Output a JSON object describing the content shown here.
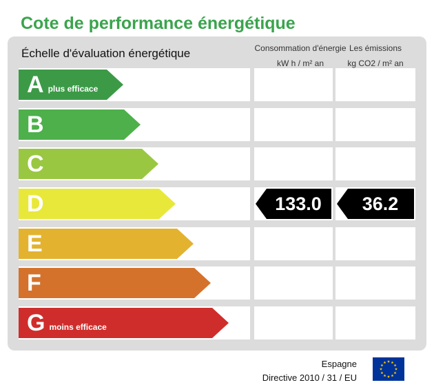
{
  "title": "Cote de performance énergétique",
  "scale_label": "Échelle d'évaluation énergétique",
  "columns": {
    "consumption": {
      "line1": "Consommation d'énergie",
      "line2": "kW h / m² an"
    },
    "emissions": {
      "line1": "Les émissions",
      "line2": "kg CO2 / m² an"
    }
  },
  "ratings": [
    {
      "letter": "A",
      "sub": "plus efficace",
      "color": "#3c9a47"
    },
    {
      "letter": "B",
      "sub": "",
      "color": "#4db04a"
    },
    {
      "letter": "C",
      "sub": "",
      "color": "#9ac741"
    },
    {
      "letter": "D",
      "sub": "",
      "color": "#e8e83a"
    },
    {
      "letter": "E",
      "sub": "",
      "color": "#e3b330"
    },
    {
      "letter": "F",
      "sub": "",
      "color": "#d4722c"
    },
    {
      "letter": "G",
      "sub": "moins efficace",
      "color": "#cf2d2b"
    }
  ],
  "current": {
    "rating": "D",
    "consumption": "133.0",
    "emissions": "36.2"
  },
  "footer": {
    "country": "Espagne",
    "directive": "Directive 2010 / 31 / EU"
  },
  "flag_icon": "eu-flag-icon"
}
